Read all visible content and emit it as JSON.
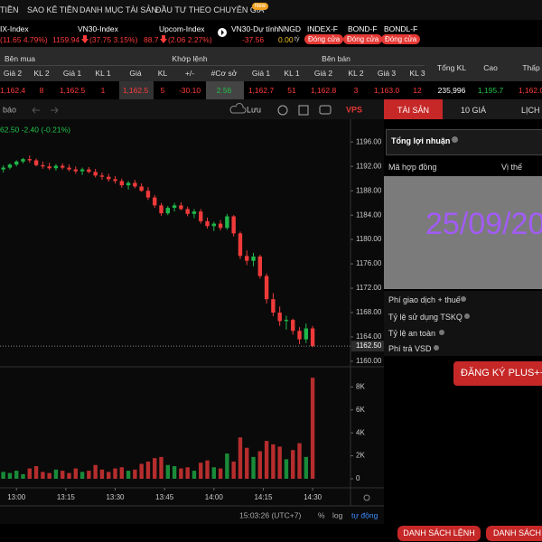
{
  "nav": {
    "items": [
      "TIỀN",
      "SAO KÊ TIỀN",
      "DANH MỤC TÀI SẢN",
      "ĐẦU TƯ THEO CHUYÊN GIA"
    ],
    "badge": "New"
  },
  "indices": [
    {
      "name": "IX-Index",
      "value": "(11.65 4.79%)"
    },
    {
      "name": "VN30-Index",
      "price": "1159.94",
      "value": "(37.75 3.15%)"
    },
    {
      "name": "Upcom-Index",
      "price": "88.7",
      "value": "(2.06 2.27%)"
    },
    {
      "name": "VN30-Dự tính",
      "value": "-37.56"
    },
    {
      "name": "NNGD",
      "price": "0.00",
      "unit": "tỷ"
    },
    {
      "name": "INDEX-F",
      "status": "Đóng cửa"
    },
    {
      "name": "BOND-F",
      "status": "Đóng cửa"
    },
    {
      "name": "BONDL-F",
      "status": "Đóng cửa"
    }
  ],
  "table": {
    "groups": [
      "Bên mua",
      "Khớp lệnh",
      "Bên bán",
      "Tổng KL",
      "Cao",
      "Thấp"
    ],
    "columns": [
      "Giá 2",
      "KL 2",
      "Giá 1",
      "KL 1",
      "Giá",
      "KL",
      "+/-",
      "#Cơ sở",
      "Giá 1",
      "KL 1",
      "Giá 2",
      "KL 2",
      "Giá 3",
      "KL 3"
    ],
    "row": [
      "1,162.4",
      "8",
      "1,162.5",
      "1",
      "1,162.5",
      "5",
      "-30.10",
      "2.56",
      "1,162.7",
      "51",
      "1,162.8",
      "3",
      "1,163.0",
      "12",
      "235,996",
      "1,195.7",
      "1,162.0"
    ]
  },
  "toolbar": {
    "alert": "báo",
    "save": "Lưu",
    "logo": "VPS"
  },
  "chart_data": {
    "type": "candlestick",
    "legend": "62.50 -2.40 (-0.21%)",
    "x": [
      776,
      778,
      780,
      782,
      784,
      786,
      788,
      790,
      792,
      794,
      796,
      798,
      800,
      802,
      804,
      806,
      808,
      810,
      812,
      814,
      816,
      818,
      820,
      822,
      824,
      826,
      828,
      830,
      832,
      834,
      836,
      838,
      840,
      842,
      844,
      846,
      848,
      850,
      852,
      854,
      856,
      858,
      860,
      862,
      864,
      866,
      868,
      870
    ],
    "ohlc": [
      [
        1191.5,
        1192.2,
        1191.0,
        1191.8
      ],
      [
        1191.8,
        1192.5,
        1191.5,
        1192.3
      ],
      [
        1192.3,
        1193.0,
        1192.0,
        1192.8
      ],
      [
        1192.8,
        1193.4,
        1192.5,
        1193.2
      ],
      [
        1193.2,
        1193.8,
        1192.6,
        1193.0
      ],
      [
        1193.0,
        1193.3,
        1192.0,
        1192.2
      ],
      [
        1192.2,
        1192.8,
        1191.6,
        1192.0
      ],
      [
        1192.0,
        1192.6,
        1191.4,
        1191.7
      ],
      [
        1191.7,
        1192.4,
        1191.3,
        1192.1
      ],
      [
        1192.1,
        1192.5,
        1191.5,
        1191.8
      ],
      [
        1191.8,
        1192.3,
        1191.2,
        1191.5
      ],
      [
        1191.5,
        1192.0,
        1190.8,
        1191.2
      ],
      [
        1191.2,
        1191.8,
        1190.6,
        1191.5
      ],
      [
        1191.5,
        1191.9,
        1190.9,
        1191.1
      ],
      [
        1191.1,
        1191.6,
        1190.2,
        1190.5
      ],
      [
        1190.5,
        1191.0,
        1189.8,
        1190.3
      ],
      [
        1190.3,
        1190.8,
        1189.5,
        1189.9
      ],
      [
        1189.9,
        1190.4,
        1189.2,
        1189.6
      ],
      [
        1189.6,
        1190.0,
        1188.5,
        1188.9
      ],
      [
        1188.9,
        1189.6,
        1188.2,
        1189.3
      ],
      [
        1189.3,
        1189.8,
        1188.4,
        1188.7
      ],
      [
        1188.7,
        1189.2,
        1187.8,
        1188.0
      ],
      [
        1188.0,
        1188.6,
        1186.5,
        1186.9
      ],
      [
        1186.9,
        1187.3,
        1185.2,
        1185.6
      ],
      [
        1185.6,
        1186.0,
        1183.9,
        1184.3
      ],
      [
        1184.3,
        1185.5,
        1184.0,
        1185.2
      ],
      [
        1185.2,
        1186.0,
        1184.6,
        1185.6
      ],
      [
        1185.6,
        1186.1,
        1184.8,
        1185.0
      ],
      [
        1185.0,
        1185.4,
        1183.8,
        1184.2
      ],
      [
        1184.2,
        1185.0,
        1183.5,
        1184.6
      ],
      [
        1184.6,
        1185.0,
        1182.6,
        1183.0
      ],
      [
        1183.0,
        1183.6,
        1181.8,
        1182.2
      ],
      [
        1182.2,
        1182.9,
        1181.4,
        1182.6
      ],
      [
        1182.6,
        1183.2,
        1181.5,
        1181.9
      ],
      [
        1181.9,
        1184.2,
        1181.6,
        1183.8
      ],
      [
        1183.8,
        1184.0,
        1180.5,
        1181.0
      ],
      [
        1181.0,
        1181.3,
        1176.8,
        1177.3
      ],
      [
        1177.3,
        1178.2,
        1175.8,
        1176.5
      ],
      [
        1176.5,
        1177.8,
        1175.6,
        1177.2
      ],
      [
        1177.2,
        1177.5,
        1173.6,
        1174.0
      ],
      [
        1174.0,
        1174.4,
        1169.5,
        1170.2
      ],
      [
        1170.2,
        1171.2,
        1167.4,
        1168.0
      ],
      [
        1168.0,
        1169.0,
        1165.8,
        1166.6
      ],
      [
        1166.6,
        1167.5,
        1165.2,
        1166.8
      ],
      [
        1166.8,
        1167.0,
        1164.4,
        1165.0
      ],
      [
        1165.0,
        1165.6,
        1162.8,
        1163.6
      ],
      [
        1163.6,
        1166.2,
        1163.0,
        1165.4
      ],
      [
        1165.4,
        1165.8,
        1162.3,
        1162.5
      ]
    ],
    "volume": [
      600,
      500,
      700,
      400,
      900,
      1100,
      600,
      500,
      800,
      700,
      500,
      900,
      600,
      700,
      1200,
      800,
      600,
      900,
      1000,
      700,
      800,
      1300,
      1500,
      1800,
      1900,
      1200,
      1100,
      900,
      1000,
      700,
      1400,
      1600,
      1000,
      900,
      2200,
      1500,
      3600,
      2700,
      1900,
      2400,
      3300,
      3000,
      2800,
      1700,
      2500,
      3100,
      1900,
      8800
    ],
    "up_color": "#1fb74a",
    "down_color": "#f03a3a",
    "xlim": [
      775,
      881.5
    ],
    "xticks": [
      {
        "value": 780,
        "label": "13:00"
      },
      {
        "value": 795,
        "label": "13:15"
      },
      {
        "value": 810,
        "label": "13:30"
      },
      {
        "value": 825,
        "label": "13:45"
      },
      {
        "value": 840,
        "label": "14:00"
      },
      {
        "value": 855,
        "label": "14:15"
      },
      {
        "value": 870,
        "label": "14:30"
      }
    ],
    "ylim": [
      1159.4,
      1199.3
    ],
    "yticks": [
      {
        "value": 1196,
        "label": "1196.00"
      },
      {
        "value": 1192,
        "label": "1192.00"
      },
      {
        "value": 1188,
        "label": "1188.00"
      },
      {
        "value": 1184,
        "label": "1184.00"
      },
      {
        "value": 1180,
        "label": "1180.00"
      },
      {
        "value": 1176,
        "label": "1176.00"
      },
      {
        "value": 1172,
        "label": "1172.00"
      },
      {
        "value": 1168,
        "label": "1168.00"
      },
      {
        "value": 1164,
        "label": "1164.00"
      },
      {
        "value": 1160,
        "label": "1160.00"
      }
    ],
    "vlim": [
      0,
      9600
    ],
    "vticks": [
      0,
      {
        "value": 2000,
        "label": "2K"
      },
      {
        "value": 4000,
        "label": "4K"
      },
      {
        "value": 6000,
        "label": "6K"
      },
      {
        "value": 8000,
        "label": "8K"
      }
    ],
    "last_price": {
      "value": 1162.5,
      "label": "1162.50"
    },
    "grid": false,
    "timestamp": "15:03:26 (UTC+7)",
    "scale_options": [
      "%",
      "log",
      "tự động"
    ]
  },
  "right_panel": {
    "tabs": [
      "TÀI SẢN",
      "10 GIÁ",
      "LỊCH S"
    ],
    "profit": "Tổng lợi nhuận",
    "headers": [
      "Mã hợp đồng",
      "Vị thế"
    ],
    "date": "25/09/20",
    "fees": [
      "Phí giao dịch + thuế",
      "Tỷ lệ sử dụng TSKQ",
      "Tỷ lệ an toàn",
      "Phí trả VSD"
    ],
    "button": "ĐĂNG KÝ PLUS++"
  },
  "bottom": {
    "buttons": [
      "DANH SÁCH LỆNH",
      "DANH SÁCH"
    ]
  }
}
